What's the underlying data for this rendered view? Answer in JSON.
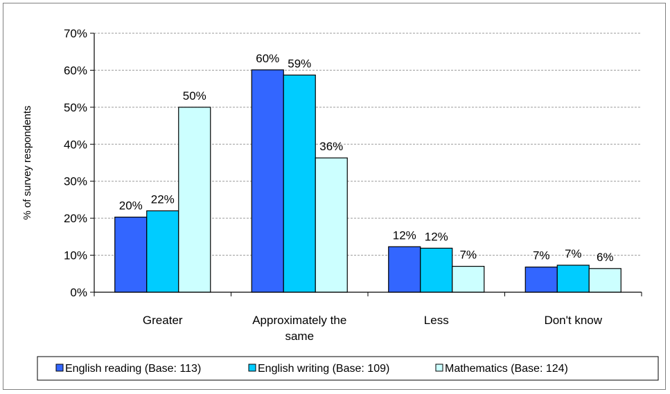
{
  "chart_data": {
    "type": "bar",
    "title": "",
    "xlabel": "",
    "ylabel": "% of survey respondents",
    "ylim": [
      0,
      70
    ],
    "ytick_step": 10,
    "ytick_format": "percent",
    "grid": "horizontal-dashed",
    "legend_position": "bottom",
    "categories": [
      [
        "Greater"
      ],
      [
        "Approximately the",
        "same"
      ],
      [
        "Less"
      ],
      [
        "Don't know"
      ]
    ],
    "series": [
      {
        "name": "English reading (Base: 113)",
        "color": "#3366ff",
        "values": [
          20.3,
          60.1,
          12.3,
          6.8
        ],
        "labels": [
          "20%",
          "60%",
          "12%",
          "7%"
        ]
      },
      {
        "name": "English writing (Base: 109)",
        "color": "#00ccff",
        "values": [
          22.0,
          58.7,
          11.9,
          7.3
        ],
        "labels": [
          "22%",
          "59%",
          "12%",
          "7%"
        ]
      },
      {
        "name": "Mathematics (Base: 124)",
        "color": "#ccffff",
        "values": [
          50.0,
          36.3,
          7.0,
          6.4
        ],
        "labels": [
          "50%",
          "36%",
          "7%",
          "6%"
        ]
      }
    ]
  }
}
